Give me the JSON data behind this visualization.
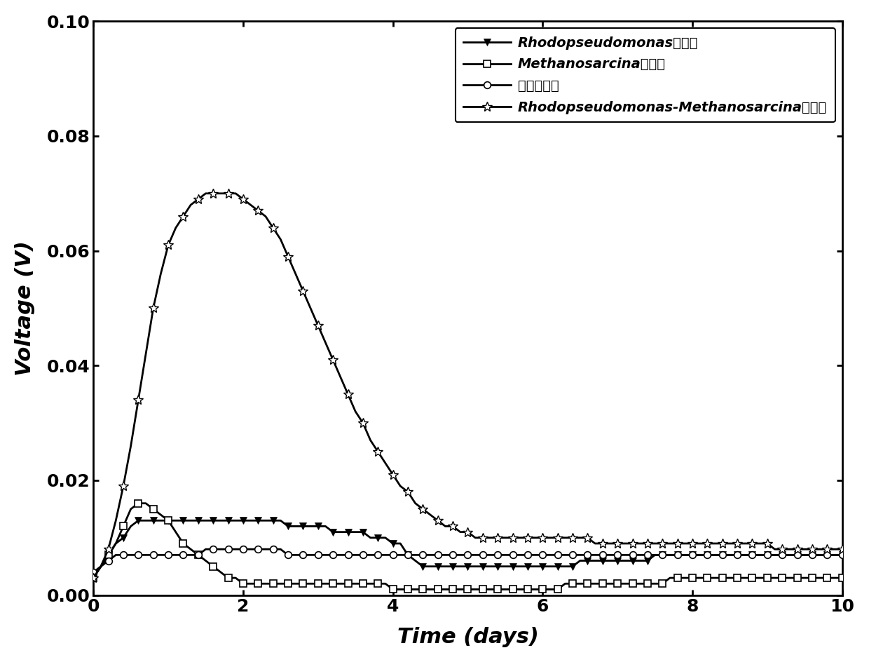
{
  "xlabel": "Time (days)",
  "ylabel": "Voltage (V)",
  "xlim": [
    0,
    10
  ],
  "ylim": [
    0,
    0.1
  ],
  "yticks": [
    0.0,
    0.02,
    0.04,
    0.06,
    0.08,
    0.1
  ],
  "xticks": [
    0,
    2,
    4,
    6,
    8,
    10
  ],
  "legend_labels": [
    "Rhodopseudomonas光照组",
    "Methanosarcina黑暗组",
    "无菌光照组",
    "Rhodopseudomonas-Methanosarcina光照组"
  ],
  "background_color": "#ffffff",
  "series1_x": [
    0.0,
    0.1,
    0.2,
    0.3,
    0.4,
    0.5,
    0.6,
    0.7,
    0.8,
    0.9,
    1.0,
    1.1,
    1.2,
    1.3,
    1.4,
    1.5,
    1.6,
    1.7,
    1.8,
    1.9,
    2.0,
    2.1,
    2.2,
    2.3,
    2.4,
    2.5,
    2.6,
    2.7,
    2.8,
    2.9,
    3.0,
    3.1,
    3.2,
    3.3,
    3.4,
    3.5,
    3.6,
    3.7,
    3.8,
    3.9,
    4.0,
    4.1,
    4.2,
    4.3,
    4.4,
    4.5,
    4.6,
    4.7,
    4.8,
    4.9,
    5.0,
    5.1,
    5.2,
    5.3,
    5.4,
    5.5,
    5.6,
    5.7,
    5.8,
    5.9,
    6.0,
    6.1,
    6.2,
    6.3,
    6.4,
    6.5,
    6.6,
    6.7,
    6.8,
    6.9,
    7.0,
    7.1,
    7.2,
    7.3,
    7.4,
    7.5,
    7.6,
    7.7,
    7.8,
    7.9,
    8.0,
    8.1,
    8.2,
    8.3,
    8.4,
    8.5,
    8.6,
    8.7,
    8.8,
    8.9,
    9.0,
    9.1,
    9.2,
    9.3,
    9.4,
    9.5,
    9.6,
    9.7,
    9.8,
    9.9,
    10.0
  ],
  "series1_y": [
    0.003,
    0.005,
    0.007,
    0.009,
    0.01,
    0.012,
    0.013,
    0.013,
    0.013,
    0.013,
    0.013,
    0.013,
    0.013,
    0.013,
    0.013,
    0.013,
    0.013,
    0.013,
    0.013,
    0.013,
    0.013,
    0.013,
    0.013,
    0.013,
    0.013,
    0.013,
    0.012,
    0.012,
    0.012,
    0.012,
    0.012,
    0.012,
    0.011,
    0.011,
    0.011,
    0.011,
    0.011,
    0.01,
    0.01,
    0.01,
    0.009,
    0.009,
    0.007,
    0.006,
    0.005,
    0.005,
    0.005,
    0.005,
    0.005,
    0.005,
    0.005,
    0.005,
    0.005,
    0.005,
    0.005,
    0.005,
    0.005,
    0.005,
    0.005,
    0.005,
    0.005,
    0.005,
    0.005,
    0.005,
    0.005,
    0.006,
    0.006,
    0.006,
    0.006,
    0.006,
    0.006,
    0.006,
    0.006,
    0.006,
    0.006,
    0.007,
    0.007,
    0.007,
    0.007,
    0.007,
    0.007,
    0.007,
    0.007,
    0.007,
    0.007,
    0.007,
    0.007,
    0.007,
    0.007,
    0.007,
    0.007,
    0.007,
    0.007,
    0.007,
    0.007,
    0.007,
    0.007,
    0.007,
    0.007,
    0.007,
    0.007
  ],
  "series2_x": [
    0.0,
    0.1,
    0.2,
    0.3,
    0.4,
    0.5,
    0.6,
    0.7,
    0.8,
    0.9,
    1.0,
    1.1,
    1.2,
    1.3,
    1.4,
    1.5,
    1.6,
    1.7,
    1.8,
    1.9,
    2.0,
    2.1,
    2.2,
    2.3,
    2.4,
    2.5,
    2.6,
    2.7,
    2.8,
    2.9,
    3.0,
    3.1,
    3.2,
    3.3,
    3.4,
    3.5,
    3.6,
    3.7,
    3.8,
    3.9,
    4.0,
    4.1,
    4.2,
    4.3,
    4.4,
    4.5,
    4.6,
    4.7,
    4.8,
    4.9,
    5.0,
    5.1,
    5.2,
    5.3,
    5.4,
    5.5,
    5.6,
    5.7,
    5.8,
    5.9,
    6.0,
    6.1,
    6.2,
    6.3,
    6.4,
    6.5,
    6.6,
    6.7,
    6.8,
    6.9,
    7.0,
    7.1,
    7.2,
    7.3,
    7.4,
    7.5,
    7.6,
    7.7,
    7.8,
    7.9,
    8.0,
    8.1,
    8.2,
    8.3,
    8.4,
    8.5,
    8.6,
    8.7,
    8.8,
    8.9,
    9.0,
    9.1,
    9.2,
    9.3,
    9.4,
    9.5,
    9.6,
    9.7,
    9.8,
    9.9,
    10.0
  ],
  "series2_y": [
    0.003,
    0.005,
    0.007,
    0.009,
    0.012,
    0.015,
    0.016,
    0.016,
    0.015,
    0.014,
    0.013,
    0.011,
    0.009,
    0.008,
    0.007,
    0.006,
    0.005,
    0.004,
    0.003,
    0.003,
    0.002,
    0.002,
    0.002,
    0.002,
    0.002,
    0.002,
    0.002,
    0.002,
    0.002,
    0.002,
    0.002,
    0.002,
    0.002,
    0.002,
    0.002,
    0.002,
    0.002,
    0.002,
    0.002,
    0.002,
    0.001,
    0.001,
    0.001,
    0.001,
    0.001,
    0.001,
    0.001,
    0.001,
    0.001,
    0.001,
    0.001,
    0.001,
    0.001,
    0.001,
    0.001,
    0.001,
    0.001,
    0.001,
    0.001,
    0.001,
    0.001,
    0.001,
    0.001,
    0.002,
    0.002,
    0.002,
    0.002,
    0.002,
    0.002,
    0.002,
    0.002,
    0.002,
    0.002,
    0.002,
    0.002,
    0.002,
    0.002,
    0.003,
    0.003,
    0.003,
    0.003,
    0.003,
    0.003,
    0.003,
    0.003,
    0.003,
    0.003,
    0.003,
    0.003,
    0.003,
    0.003,
    0.003,
    0.003,
    0.003,
    0.003,
    0.003,
    0.003,
    0.003,
    0.003,
    0.003,
    0.003
  ],
  "series3_x": [
    0.0,
    0.1,
    0.2,
    0.3,
    0.4,
    0.5,
    0.6,
    0.7,
    0.8,
    0.9,
    1.0,
    1.1,
    1.2,
    1.3,
    1.4,
    1.5,
    1.6,
    1.7,
    1.8,
    1.9,
    2.0,
    2.1,
    2.2,
    2.3,
    2.4,
    2.5,
    2.6,
    2.7,
    2.8,
    2.9,
    3.0,
    3.1,
    3.2,
    3.3,
    3.4,
    3.5,
    3.6,
    3.7,
    3.8,
    3.9,
    4.0,
    4.1,
    4.2,
    4.3,
    4.4,
    4.5,
    4.6,
    4.7,
    4.8,
    4.9,
    5.0,
    5.1,
    5.2,
    5.3,
    5.4,
    5.5,
    5.6,
    5.7,
    5.8,
    5.9,
    6.0,
    6.1,
    6.2,
    6.3,
    6.4,
    6.5,
    6.6,
    6.7,
    6.8,
    6.9,
    7.0,
    7.1,
    7.2,
    7.3,
    7.4,
    7.5,
    7.6,
    7.7,
    7.8,
    7.9,
    8.0,
    8.1,
    8.2,
    8.3,
    8.4,
    8.5,
    8.6,
    8.7,
    8.8,
    8.9,
    9.0,
    9.1,
    9.2,
    9.3,
    9.4,
    9.5,
    9.6,
    9.7,
    9.8,
    9.9,
    10.0
  ],
  "series3_y": [
    0.004,
    0.005,
    0.006,
    0.007,
    0.007,
    0.007,
    0.007,
    0.007,
    0.007,
    0.007,
    0.007,
    0.007,
    0.007,
    0.007,
    0.007,
    0.008,
    0.008,
    0.008,
    0.008,
    0.008,
    0.008,
    0.008,
    0.008,
    0.008,
    0.008,
    0.008,
    0.007,
    0.007,
    0.007,
    0.007,
    0.007,
    0.007,
    0.007,
    0.007,
    0.007,
    0.007,
    0.007,
    0.007,
    0.007,
    0.007,
    0.007,
    0.007,
    0.007,
    0.007,
    0.007,
    0.007,
    0.007,
    0.007,
    0.007,
    0.007,
    0.007,
    0.007,
    0.007,
    0.007,
    0.007,
    0.007,
    0.007,
    0.007,
    0.007,
    0.007,
    0.007,
    0.007,
    0.007,
    0.007,
    0.007,
    0.007,
    0.007,
    0.007,
    0.007,
    0.007,
    0.007,
    0.007,
    0.007,
    0.007,
    0.007,
    0.007,
    0.007,
    0.007,
    0.007,
    0.007,
    0.007,
    0.007,
    0.007,
    0.007,
    0.007,
    0.007,
    0.007,
    0.007,
    0.007,
    0.007,
    0.007,
    0.007,
    0.007,
    0.007,
    0.007,
    0.007,
    0.007,
    0.007,
    0.007,
    0.007,
    0.007
  ],
  "series4_x": [
    0.0,
    0.1,
    0.2,
    0.3,
    0.4,
    0.5,
    0.6,
    0.7,
    0.8,
    0.9,
    1.0,
    1.1,
    1.2,
    1.3,
    1.4,
    1.5,
    1.6,
    1.7,
    1.8,
    1.9,
    2.0,
    2.1,
    2.2,
    2.3,
    2.4,
    2.5,
    2.6,
    2.7,
    2.8,
    2.9,
    3.0,
    3.1,
    3.2,
    3.3,
    3.4,
    3.5,
    3.6,
    3.7,
    3.8,
    3.9,
    4.0,
    4.1,
    4.2,
    4.3,
    4.4,
    4.5,
    4.6,
    4.7,
    4.8,
    4.9,
    5.0,
    5.1,
    5.2,
    5.3,
    5.4,
    5.5,
    5.6,
    5.7,
    5.8,
    5.9,
    6.0,
    6.1,
    6.2,
    6.3,
    6.4,
    6.5,
    6.6,
    6.7,
    6.8,
    6.9,
    7.0,
    7.1,
    7.2,
    7.3,
    7.4,
    7.5,
    7.6,
    7.7,
    7.8,
    7.9,
    8.0,
    8.1,
    8.2,
    8.3,
    8.4,
    8.5,
    8.6,
    8.7,
    8.8,
    8.9,
    9.0,
    9.1,
    9.2,
    9.3,
    9.4,
    9.5,
    9.6,
    9.7,
    9.8,
    9.9,
    10.0
  ],
  "series4_y": [
    0.003,
    0.005,
    0.008,
    0.013,
    0.019,
    0.026,
    0.034,
    0.042,
    0.05,
    0.056,
    0.061,
    0.064,
    0.066,
    0.068,
    0.069,
    0.07,
    0.07,
    0.07,
    0.07,
    0.07,
    0.069,
    0.068,
    0.067,
    0.066,
    0.064,
    0.062,
    0.059,
    0.056,
    0.053,
    0.05,
    0.047,
    0.044,
    0.041,
    0.038,
    0.035,
    0.032,
    0.03,
    0.027,
    0.025,
    0.023,
    0.021,
    0.019,
    0.018,
    0.016,
    0.015,
    0.014,
    0.013,
    0.012,
    0.012,
    0.011,
    0.011,
    0.01,
    0.01,
    0.01,
    0.01,
    0.01,
    0.01,
    0.01,
    0.01,
    0.01,
    0.01,
    0.01,
    0.01,
    0.01,
    0.01,
    0.01,
    0.01,
    0.009,
    0.009,
    0.009,
    0.009,
    0.009,
    0.009,
    0.009,
    0.009,
    0.009,
    0.009,
    0.009,
    0.009,
    0.009,
    0.009,
    0.009,
    0.009,
    0.009,
    0.009,
    0.009,
    0.009,
    0.009,
    0.009,
    0.009,
    0.009,
    0.008,
    0.008,
    0.008,
    0.008,
    0.008,
    0.008,
    0.008,
    0.008,
    0.008,
    0.008
  ]
}
